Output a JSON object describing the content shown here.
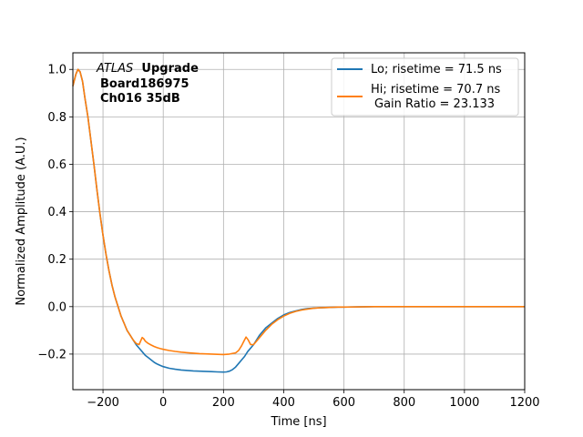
{
  "chart_data": {
    "type": "line",
    "xlabel": "Time [ns]",
    "ylabel": "Normalized Amplitude (A.U.)",
    "xlim": [
      -300,
      1200
    ],
    "ylim": [
      -0.35,
      1.07
    ],
    "x_ticks": [
      -200,
      0,
      200,
      400,
      600,
      800,
      1000,
      1200
    ],
    "x_tick_labels": [
      "−200",
      "0",
      "200",
      "400",
      "600",
      "800",
      "1000",
      "1200"
    ],
    "y_ticks": [
      -0.2,
      0.0,
      0.2,
      0.4,
      0.6,
      0.8,
      1.0
    ],
    "y_tick_labels": [
      "−0.2",
      "0.0",
      "0.2",
      "0.4",
      "0.6",
      "0.8",
      "1.0"
    ],
    "grid": true,
    "legend_position": "top-right",
    "annotation": {
      "atlas": "ATLAS",
      "upgrade": "Upgrade",
      "board": "Board186975",
      "channel": "Ch016 35dB"
    },
    "legend_extra": "Gain Ratio = 23.133",
    "series": [
      {
        "name": "Lo; risetime = 71.5 ns",
        "color": "#1f77b4",
        "x": [
          -300,
          -290,
          -283,
          -276,
          -268,
          -260,
          -250,
          -240,
          -230,
          -220,
          -210,
          -200,
          -190,
          -180,
          -170,
          -160,
          -150,
          -140,
          -130,
          -120,
          -110,
          -100,
          -90,
          -80,
          -70,
          -60,
          -50,
          -40,
          -30,
          -20,
          -10,
          0,
          20,
          40,
          60,
          80,
          100,
          120,
          140,
          160,
          180,
          200,
          210,
          220,
          230,
          240,
          250,
          260,
          270,
          280,
          300,
          320,
          340,
          360,
          380,
          400,
          420,
          440,
          460,
          480,
          500,
          520,
          540,
          560,
          580,
          600,
          650,
          700,
          750,
          800,
          900,
          1000,
          1100,
          1200
        ],
        "y": [
          0.93,
          0.98,
          1.0,
          0.99,
          0.95,
          0.88,
          0.8,
          0.7,
          0.6,
          0.49,
          0.39,
          0.3,
          0.22,
          0.15,
          0.09,
          0.04,
          0.0,
          -0.04,
          -0.07,
          -0.1,
          -0.12,
          -0.14,
          -0.16,
          -0.175,
          -0.19,
          -0.205,
          -0.215,
          -0.225,
          -0.235,
          -0.242,
          -0.248,
          -0.253,
          -0.26,
          -0.264,
          -0.267,
          -0.269,
          -0.271,
          -0.272,
          -0.273,
          -0.274,
          -0.275,
          -0.276,
          -0.275,
          -0.272,
          -0.265,
          -0.255,
          -0.24,
          -0.225,
          -0.21,
          -0.19,
          -0.16,
          -0.12,
          -0.09,
          -0.07,
          -0.05,
          -0.035,
          -0.025,
          -0.018,
          -0.012,
          -0.008,
          -0.006,
          -0.005,
          -0.004,
          -0.003,
          -0.002,
          -0.002,
          -0.001,
          0.0,
          0.0,
          0.0,
          0.0,
          0.0,
          0.0,
          0.0
        ]
      },
      {
        "name": "Hi; risetime = 70.7 ns",
        "color": "#ff7f0e",
        "x": [
          -300,
          -290,
          -283,
          -276,
          -268,
          -260,
          -250,
          -240,
          -230,
          -220,
          -210,
          -200,
          -190,
          -180,
          -170,
          -160,
          -150,
          -140,
          -130,
          -120,
          -110,
          -100,
          -90,
          -80,
          -75,
          -70,
          -65,
          -60,
          -50,
          -40,
          -30,
          -20,
          -10,
          0,
          20,
          40,
          60,
          80,
          100,
          120,
          140,
          160,
          180,
          200,
          220,
          240,
          250,
          260,
          268,
          275,
          282,
          290,
          300,
          320,
          340,
          360,
          380,
          400,
          420,
          440,
          460,
          480,
          500,
          520,
          540,
          560,
          580,
          600,
          650,
          700,
          750,
          800,
          900,
          1000,
          1100,
          1200
        ],
        "y": [
          0.93,
          0.98,
          1.0,
          0.99,
          0.95,
          0.88,
          0.8,
          0.7,
          0.6,
          0.49,
          0.39,
          0.3,
          0.22,
          0.15,
          0.09,
          0.04,
          0.0,
          -0.04,
          -0.07,
          -0.1,
          -0.12,
          -0.14,
          -0.155,
          -0.16,
          -0.145,
          -0.13,
          -0.135,
          -0.145,
          -0.155,
          -0.162,
          -0.168,
          -0.173,
          -0.177,
          -0.18,
          -0.185,
          -0.189,
          -0.192,
          -0.194,
          -0.196,
          -0.198,
          -0.199,
          -0.2,
          -0.201,
          -0.202,
          -0.2,
          -0.195,
          -0.185,
          -0.165,
          -0.145,
          -0.128,
          -0.14,
          -0.16,
          -0.16,
          -0.13,
          -0.1,
          -0.075,
          -0.055,
          -0.04,
          -0.028,
          -0.02,
          -0.014,
          -0.01,
          -0.007,
          -0.005,
          -0.004,
          -0.003,
          -0.002,
          -0.002,
          -0.001,
          0.0,
          0.0,
          0.0,
          0.0,
          0.0,
          0.0,
          0.0
        ]
      }
    ]
  }
}
